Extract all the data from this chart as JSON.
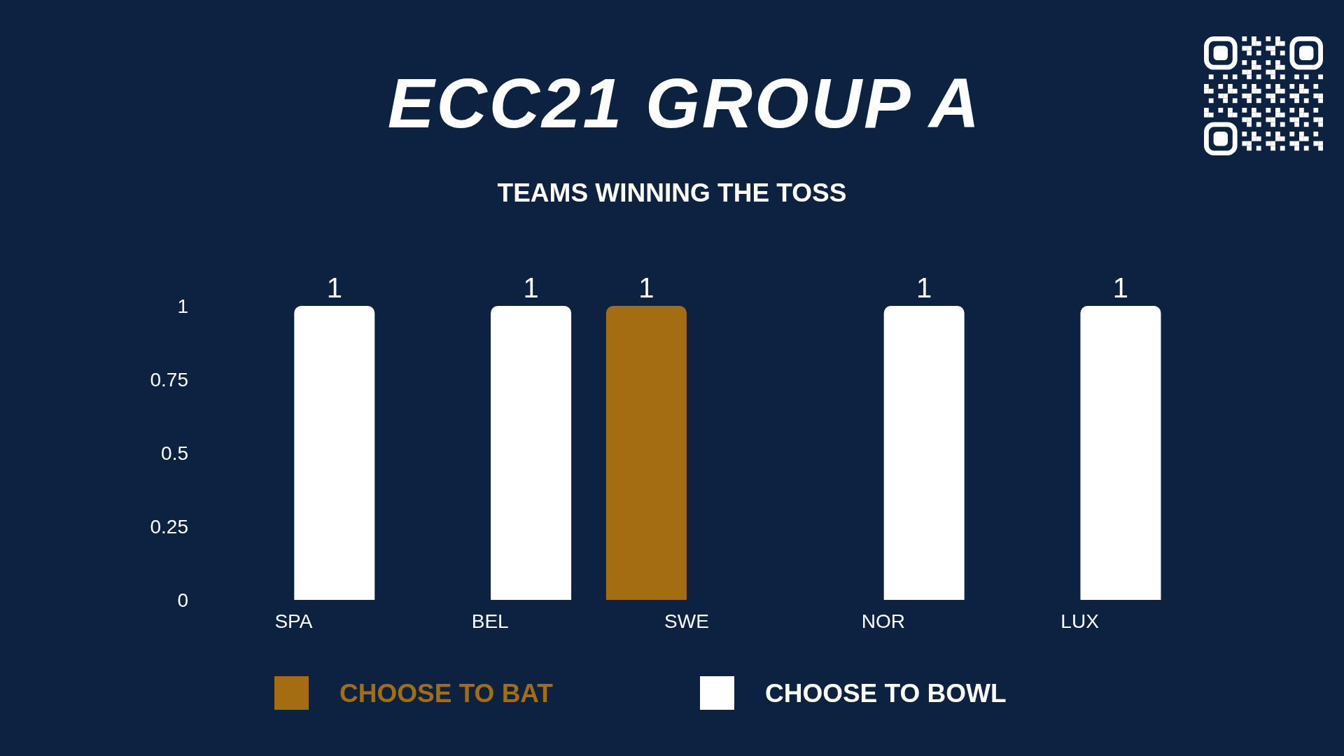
{
  "chart_data": {
    "type": "bar",
    "title": "ECC21 GROUP A",
    "subtitle": "TEAMS WINNING THE TOSS",
    "categories": [
      "SPA",
      "BEL",
      "SWE",
      "NOR",
      "LUX"
    ],
    "series": [
      {
        "name": "CHOOSE TO BAT",
        "color": "#a56d12",
        "values": [
          0,
          0,
          1,
          0,
          0
        ],
        "value_labels": [
          null,
          null,
          "1",
          null,
          null
        ]
      },
      {
        "name": "CHOOSE TO BOWL",
        "color": "#ffffff",
        "values": [
          1,
          1,
          0,
          1,
          1
        ],
        "value_labels": [
          "1",
          "1",
          null,
          "1",
          "1"
        ]
      }
    ],
    "ylim": [
      0,
      1
    ],
    "yticks": [
      0,
      0.25,
      0.5,
      0.75,
      1
    ],
    "legend": "bottom"
  }
}
